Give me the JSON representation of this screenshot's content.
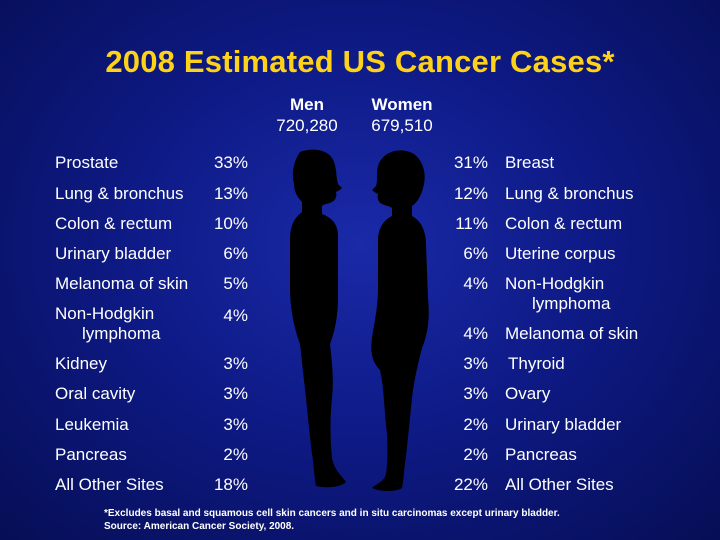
{
  "title": "2008 Estimated US Cancer Cases*",
  "men": {
    "label": "Men",
    "count": "720,280"
  },
  "women": {
    "label": "Women",
    "count": "679,510"
  },
  "men_rows": [
    {
      "site": "Prostate",
      "pct": "33%"
    },
    {
      "site": "Lung & bronchus",
      "pct": "13%"
    },
    {
      "site": "Colon & rectum",
      "pct": "10%"
    },
    {
      "site": "Urinary bladder",
      "pct": "6%"
    },
    {
      "site": "Melanoma of skin",
      "pct": "5%"
    },
    {
      "site": "Non-Hodgkin",
      "site2": "lymphoma",
      "pct": "4%"
    },
    {
      "site": "Kidney",
      "pct": "3%"
    },
    {
      "site": "Oral cavity",
      "pct": "3%"
    },
    {
      "site": "Leukemia",
      "pct": "3%"
    },
    {
      "site": "Pancreas",
      "pct": "2%"
    },
    {
      "site": "All Other Sites",
      "pct": "18%"
    }
  ],
  "women_rows": [
    {
      "site": "Breast",
      "pct": "31%"
    },
    {
      "site": "Lung & bronchus",
      "pct": "12%"
    },
    {
      "site": "Colon & rectum",
      "pct": "11%"
    },
    {
      "site": "Uterine corpus",
      "pct": "6%"
    },
    {
      "site": "Non-Hodgkin",
      "site2": "lymphoma",
      "pct": "4%"
    },
    {
      "site": "Melanoma of skin",
      "pct": "4%"
    },
    {
      "site": "Thyroid",
      "pct": "3%"
    },
    {
      "site": "Ovary",
      "pct": "3%"
    },
    {
      "site": "Urinary bladder",
      "pct": "2%"
    },
    {
      "site": "Pancreas",
      "pct": "2%"
    },
    {
      "site": "All Other Sites",
      "pct": "22%"
    }
  ],
  "footnote": {
    "line1": "*Excludes basal and squamous cell skin cancers and in situ carcinomas except urinary bladder.",
    "line2": "Source: American Cancer Society, 2008."
  },
  "colors": {
    "title": "#ffd21a",
    "background": "#0e1a86",
    "silhouette": "#000000"
  }
}
